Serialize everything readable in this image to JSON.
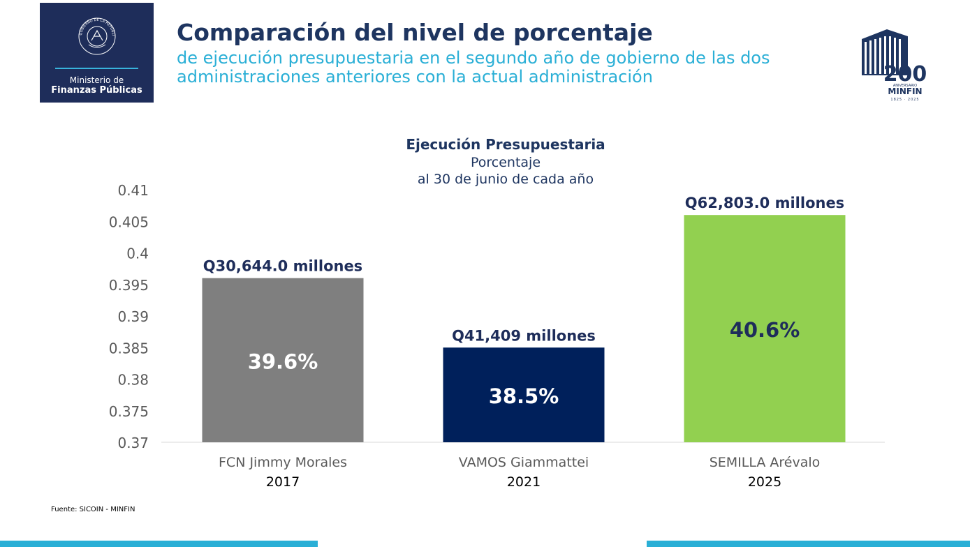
{
  "header": {
    "logo_line1": "Ministerio de",
    "logo_line2": "Finanzas Públicas",
    "logo_seal_text": "GOBIERNO DE LA REPÚBLICA · GUATEMALA ·",
    "title": "Comparación del nivel de porcentaje",
    "subtitle": "de ejecución presupuestaria en el segundo año de gobierno de las dos administraciones anteriores con la actual administración",
    "badge_number": "200",
    "badge_label": "ANIVERSARIO",
    "badge_name": "MINFIN",
    "badge_years": "1825 · 2025"
  },
  "chart_data": {
    "type": "bar",
    "title": "Ejecución Presupuestaria",
    "subtitle_line1": "Porcentaje",
    "subtitle_line2": "al 30 de junio de cada año",
    "categories": [
      "FCN Jimmy Morales",
      "VAMOS Giammattei",
      "SEMILLA Arévalo"
    ],
    "years": [
      "2017",
      "2021",
      "2025"
    ],
    "values": [
      0.396,
      0.385,
      0.406
    ],
    "value_labels": [
      "39.6%",
      "38.5%",
      "40.6%"
    ],
    "amount_labels": [
      "Q30,644.0 millones",
      "Q41,409 millones",
      "Q62,803.0 millones"
    ],
    "colors": [
      "#7f7f7f",
      "#00205b",
      "#92d050"
    ],
    "label_colors": [
      "#ffffff",
      "#ffffff",
      "#1e2d5a"
    ],
    "ylim": [
      0.37,
      0.41
    ],
    "yticks": [
      "0.37",
      "0.375",
      "0.38",
      "0.385",
      "0.39",
      "0.395",
      "0.4",
      "0.405",
      "0.41"
    ],
    "grid": false
  },
  "footer": {
    "source": "Fuente: SICOIN - MINFIN"
  }
}
